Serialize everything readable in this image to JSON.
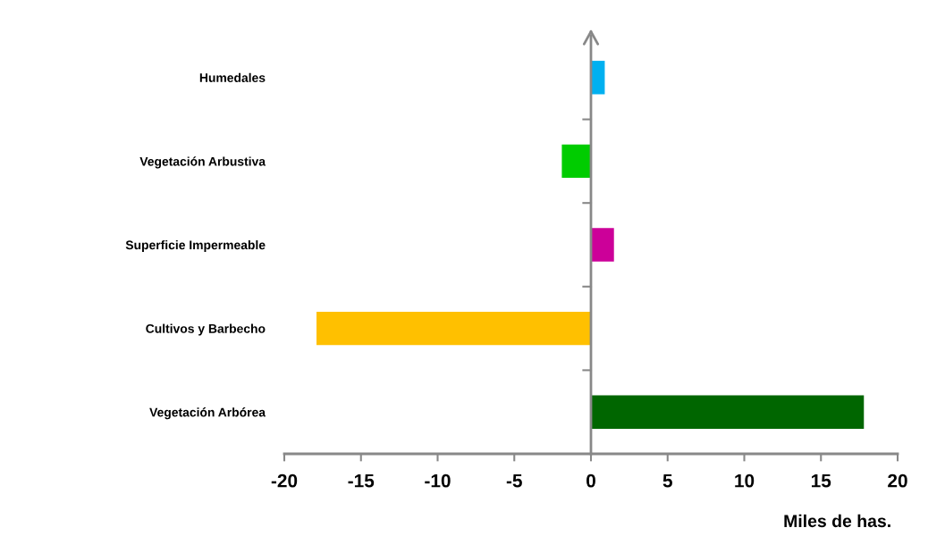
{
  "chart_data": {
    "type": "bar",
    "orientation": "horizontal",
    "xlabel": "Miles de has.",
    "categories": [
      "Humedales",
      "Vegetación Arbustiva",
      "Superficie Impermeable",
      "Cultivos y Barbecho",
      "Vegetación Arbórea"
    ],
    "values": [
      0.9,
      -1.9,
      1.5,
      -17.9,
      17.8
    ],
    "colors": [
      "#00b0f0",
      "#00cc00",
      "#cc0099",
      "#ffc000",
      "#006600"
    ],
    "xlim": [
      -20,
      20
    ],
    "xticks": [
      -20,
      -15,
      -10,
      -5,
      0,
      5,
      10,
      15,
      20
    ],
    "legend": false
  }
}
